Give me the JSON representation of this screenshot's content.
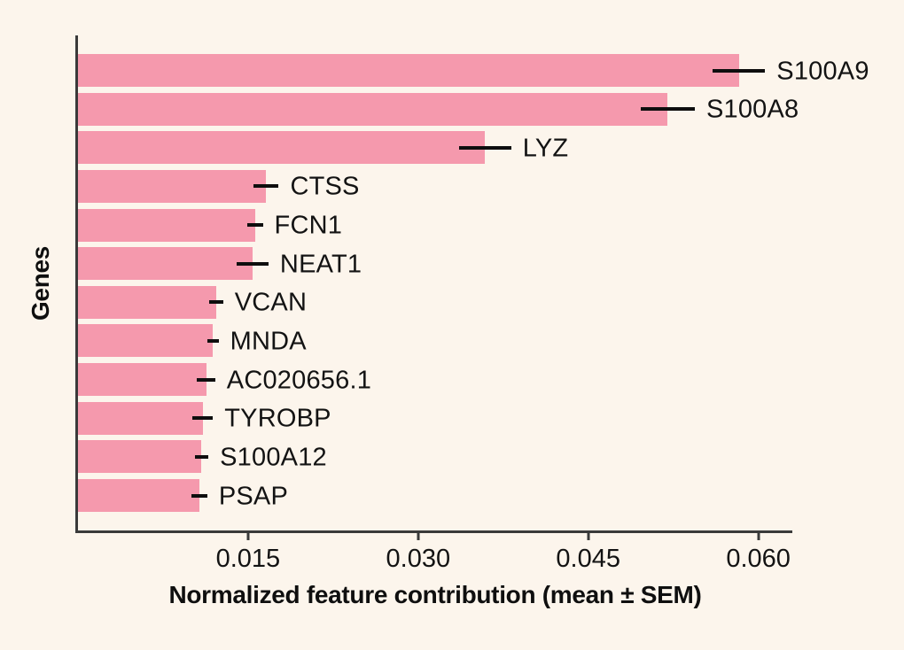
{
  "chart_data": {
    "type": "bar",
    "orientation": "horizontal",
    "xlabel": "Normalized feature contribution (mean ± SEM)",
    "ylabel": "Genes",
    "categories": [
      "S100A9",
      "S100A8",
      "LYZ",
      "CTSS",
      "FCN1",
      "NEAT1",
      "VCAN",
      "MNDA",
      "AC020656.1",
      "TYROBP",
      "S100A12",
      "PSAP"
    ],
    "values": [
      0.0583,
      0.052,
      0.0359,
      0.0166,
      0.0156,
      0.0154,
      0.0122,
      0.0119,
      0.0113,
      0.011,
      0.0109,
      0.0107
    ],
    "sem": [
      0.0023,
      0.0024,
      0.0023,
      0.0011,
      0.0007,
      0.0014,
      0.0006,
      0.0005,
      0.0008,
      0.0009,
      0.0006,
      0.0007
    ],
    "xlim": [
      0,
      0.063
    ],
    "xticks": [
      0.015,
      0.03,
      0.045,
      0.06
    ],
    "xtick_labels": [
      "0.015",
      "0.030",
      "0.045",
      "0.060"
    ],
    "grid": false,
    "legend_position": "none",
    "colors": {
      "bar": "#F599AD",
      "errorbar": "#0E0E0E",
      "background": "#FCF5EC",
      "spine": "#3A3A3A",
      "text": "#131313"
    }
  }
}
